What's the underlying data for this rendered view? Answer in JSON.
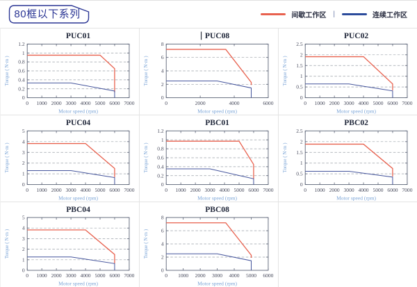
{
  "header": {
    "badge": "80框以下系列",
    "legend": {
      "intermittent_label": "间歇工作区",
      "separator": "|",
      "continuous_label": "连续工作区"
    }
  },
  "colors": {
    "intermittent": "#e8614e",
    "continuous": "#44549c",
    "legend_continuous": "#2b4b9b",
    "badge": "#2a3594",
    "plot_border": "#5b6376",
    "gridline": "#9aa0a8",
    "tick_label": "#45485a",
    "axis_label": "#79a3d6",
    "title": "#20273a"
  },
  "chart_data": [
    {
      "type": "line",
      "title": "PUC01",
      "caret": false,
      "xlabel": "Motor speed (rpm)",
      "ylabel": "Torque ( N·m )",
      "xlim": [
        0,
        7000
      ],
      "ylim": [
        0,
        1.2
      ],
      "xticks": [
        0,
        1000,
        2000,
        3000,
        4000,
        5000,
        6000,
        7000
      ],
      "yticks": [
        0,
        0.2,
        0.4,
        0.6,
        0.8,
        1,
        1.2
      ],
      "series": [
        {
          "key": "intermittent",
          "name": "间歇工作区",
          "points": [
            [
              0,
              0.95
            ],
            [
              5000,
              0.95
            ],
            [
              6000,
              0.65
            ],
            [
              6000,
              0.12
            ]
          ]
        },
        {
          "key": "continuous",
          "name": "连续工作区",
          "points": [
            [
              0,
              0.33
            ],
            [
              3000,
              0.33
            ],
            [
              6000,
              0.15
            ],
            [
              6000,
              0
            ]
          ]
        }
      ]
    },
    {
      "type": "line",
      "title": "PUC08",
      "caret": true,
      "xlabel": "Motor speed (rpm)",
      "ylabel": "Torque ( N·m )",
      "xlim": [
        0,
        6000
      ],
      "ylim": [
        0,
        8
      ],
      "xticks": [
        0,
        2000,
        4000,
        6000
      ],
      "yticks": [
        0,
        2,
        4,
        6,
        8
      ],
      "series": [
        {
          "key": "intermittent",
          "name": "间歇工作区",
          "points": [
            [
              0,
              7.2
            ],
            [
              3500,
              7.2
            ],
            [
              5000,
              2.3
            ],
            [
              5000,
              1.9
            ]
          ]
        },
        {
          "key": "continuous",
          "name": "连续工作区",
          "points": [
            [
              0,
              2.5
            ],
            [
              3000,
              2.5
            ],
            [
              5000,
              1.45
            ],
            [
              5000,
              0
            ]
          ]
        }
      ]
    },
    {
      "type": "line",
      "title": "PUC02",
      "caret": false,
      "xlabel": "Motor speed (rpm)",
      "ylabel": "Torque ( N·m )",
      "xlim": [
        0,
        7000
      ],
      "ylim": [
        0,
        2.5
      ],
      "xticks": [
        0,
        1000,
        2000,
        3000,
        4000,
        5000,
        6000,
        7000
      ],
      "yticks": [
        0,
        0.5,
        1,
        1.5,
        2,
        2.5
      ],
      "series": [
        {
          "key": "intermittent",
          "name": "间歇工作区",
          "points": [
            [
              0,
              1.91
            ],
            [
              4000,
              1.91
            ],
            [
              6000,
              0.64
            ],
            [
              6000,
              0.35
            ]
          ]
        },
        {
          "key": "continuous",
          "name": "连续工作区",
          "points": [
            [
              0,
              0.64
            ],
            [
              3000,
              0.64
            ],
            [
              6000,
              0.32
            ],
            [
              6000,
              0
            ]
          ]
        }
      ]
    },
    {
      "type": "line",
      "title": "PUC04",
      "caret": false,
      "xlabel": "Motor speed (rpm)",
      "ylabel": "Torque ( N·m )",
      "xlim": [
        0,
        7000
      ],
      "ylim": [
        0,
        5
      ],
      "xticks": [
        0,
        1000,
        2000,
        3000,
        4000,
        5000,
        6000,
        7000
      ],
      "yticks": [
        0,
        1,
        2,
        3,
        4,
        5
      ],
      "series": [
        {
          "key": "intermittent",
          "name": "间歇工作区",
          "points": [
            [
              0,
              3.82
            ],
            [
              4000,
              3.82
            ],
            [
              6000,
              1.5
            ],
            [
              6000,
              0.7
            ]
          ]
        },
        {
          "key": "continuous",
          "name": "连续工作区",
          "points": [
            [
              0,
              1.3
            ],
            [
              3000,
              1.3
            ],
            [
              6000,
              0.65
            ],
            [
              6000,
              0
            ]
          ]
        }
      ]
    },
    {
      "type": "line",
      "title": "PBC01",
      "caret": false,
      "xlabel": "Motor speed (rpm)",
      "ylabel": "Torque ( N·m )",
      "xlim": [
        0,
        7000
      ],
      "ylim": [
        0,
        1.2
      ],
      "xticks": [
        0,
        1000,
        2000,
        3000,
        4000,
        5000,
        6000,
        7000
      ],
      "yticks": [
        0,
        0.2,
        0.4,
        0.6,
        0.8,
        1,
        1.2
      ],
      "series": [
        {
          "key": "intermittent",
          "name": "间歇工作区",
          "points": [
            [
              0,
              0.97
            ],
            [
              5000,
              0.97
            ],
            [
              6000,
              0.45
            ],
            [
              6000,
              0.13
            ]
          ]
        },
        {
          "key": "continuous",
          "name": "连续工作区",
          "points": [
            [
              0,
              0.35
            ],
            [
              3000,
              0.35
            ],
            [
              6000,
              0.13
            ],
            [
              6000,
              0
            ]
          ]
        }
      ]
    },
    {
      "type": "line",
      "title": "PBC02",
      "caret": false,
      "xlabel": "Motor speed (rpm)",
      "ylabel": "Torque ( N·m )",
      "xlim": [
        0,
        7000
      ],
      "ylim": [
        0,
        2.5
      ],
      "xticks": [
        0,
        1000,
        2000,
        3000,
        4000,
        5000,
        6000,
        7000
      ],
      "yticks": [
        0,
        0.5,
        1,
        1.5,
        2,
        2.5
      ],
      "series": [
        {
          "key": "intermittent",
          "name": "间歇工作区",
          "points": [
            [
              0,
              1.88
            ],
            [
              4000,
              1.88
            ],
            [
              6000,
              0.75
            ],
            [
              6000,
              0.38
            ]
          ]
        },
        {
          "key": "continuous",
          "name": "连续工作区",
          "points": [
            [
              0,
              0.62
            ],
            [
              3000,
              0.62
            ],
            [
              6000,
              0.35
            ],
            [
              6000,
              0
            ]
          ]
        }
      ]
    },
    {
      "type": "line",
      "title": "PBC04",
      "caret": false,
      "xlabel": "Motor speed (rpm)",
      "ylabel": "Torque ( N·m )",
      "xlim": [
        0,
        7000
      ],
      "ylim": [
        0,
        5
      ],
      "xticks": [
        0,
        1000,
        2000,
        3000,
        4000,
        5000,
        6000,
        7000
      ],
      "yticks": [
        0,
        1,
        2,
        3,
        4,
        5
      ],
      "series": [
        {
          "key": "intermittent",
          "name": "间歇工作区",
          "points": [
            [
              0,
              3.82
            ],
            [
              4000,
              3.82
            ],
            [
              6000,
              1.5
            ],
            [
              6000,
              0.65
            ]
          ]
        },
        {
          "key": "continuous",
          "name": "连续工作区",
          "points": [
            [
              0,
              1.27
            ],
            [
              3000,
              1.27
            ],
            [
              6000,
              0.64
            ],
            [
              6000,
              0
            ]
          ]
        }
      ]
    },
    {
      "type": "line",
      "title": "PBC08",
      "caret": false,
      "xlabel": "Motor speed (rpm)",
      "ylabel": "Torque ( N·m )",
      "xlim": [
        0,
        6000
      ],
      "ylim": [
        0,
        8
      ],
      "xticks": [
        0,
        1000,
        2000,
        3000,
        4000,
        5000,
        6000
      ],
      "yticks": [
        0,
        2,
        4,
        6,
        8
      ],
      "series": [
        {
          "key": "intermittent",
          "name": "间歇工作区",
          "points": [
            [
              0,
              7.2
            ],
            [
              3500,
              7.2
            ],
            [
              5000,
              2.3
            ],
            [
              5000,
              1.9
            ]
          ]
        },
        {
          "key": "continuous",
          "name": "连续工作区",
          "points": [
            [
              0,
              2.5
            ],
            [
              3000,
              2.5
            ],
            [
              5000,
              1.45
            ],
            [
              5000,
              0
            ]
          ]
        }
      ]
    }
  ]
}
